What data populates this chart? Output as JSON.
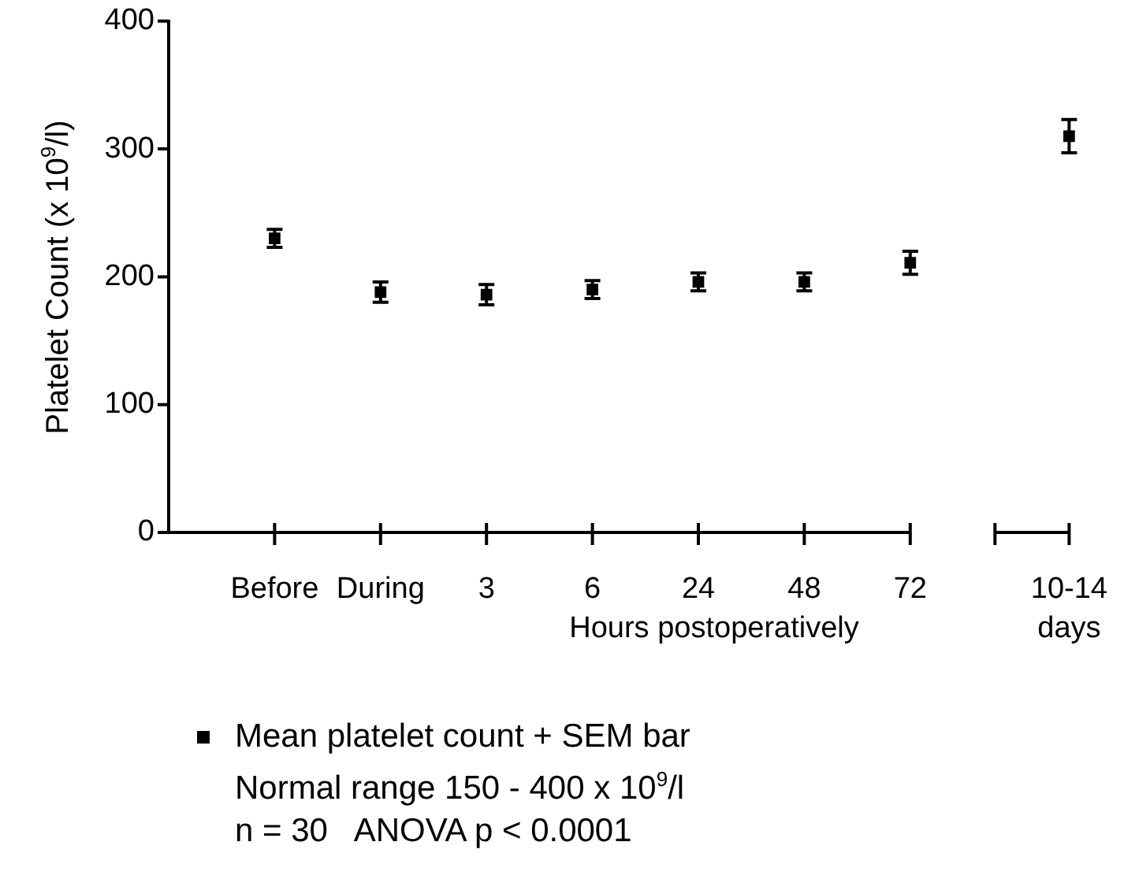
{
  "chart_data": {
    "type": "scatter",
    "ylabel": "Platelet Count (x 10$^{9}$/l)",
    "xlabel": "Hours postoperatively",
    "categories": [
      "Before",
      "During",
      "3",
      "6",
      "24",
      "48",
      "72",
      "10-14 days"
    ],
    "series": [
      {
        "name": "Mean platelet count + SEM bar",
        "color": "#000000",
        "values": [
          230,
          188,
          186,
          190,
          196,
          196,
          211,
          310
        ],
        "errors": [
          7,
          8,
          8,
          7,
          7,
          7,
          9,
          13
        ]
      }
    ],
    "ylim": [
      0,
      400
    ],
    "yticks": [
      0,
      100,
      200,
      300,
      400
    ],
    "legend": "bottom",
    "marker": "square",
    "annotations": [
      "Normal range 150 - 400 x 10$^{9}$/l",
      "n = 30   ANOVA p < 0.0001"
    ]
  }
}
